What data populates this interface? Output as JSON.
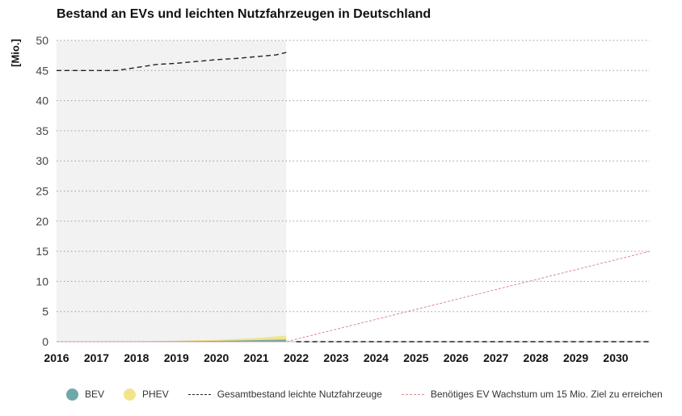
{
  "chart_data": {
    "type": "area",
    "title": "Bestand an EVs und leichten Nutzfahrzeugen in Deutschland",
    "ylabel": "[Mio.]",
    "xlabel": "",
    "ylim": [
      0,
      50
    ],
    "yticks": [
      0,
      5,
      10,
      15,
      20,
      25,
      30,
      35,
      40,
      45,
      50
    ],
    "xlim": [
      2016,
      2031
    ],
    "xticks": [
      "2016",
      "2017",
      "2018",
      "2019",
      "2020",
      "2021",
      "2022",
      "2023",
      "2024",
      "2025",
      "2026",
      "2027",
      "2028",
      "2029",
      "2030"
    ],
    "grid": "horizontal dotted",
    "shaded_region": {
      "from": 2016,
      "to": 2021.75,
      "color": "#f2f2f2"
    },
    "legend_position": "bottom",
    "series": [
      {
        "name": "BEV",
        "type": "area",
        "color": "#6fa8a8",
        "x": [
          2016,
          2017,
          2018,
          2019,
          2020,
          2021,
          2021.75
        ],
        "y": [
          0.01,
          0.03,
          0.05,
          0.08,
          0.13,
          0.25,
          0.35
        ]
      },
      {
        "name": "PHEV",
        "type": "area",
        "color": "#f2e48a",
        "x": [
          2016,
          2017,
          2018,
          2019,
          2020,
          2021,
          2021.75
        ],
        "y": [
          0.02,
          0.05,
          0.09,
          0.15,
          0.3,
          0.6,
          1.0
        ]
      },
      {
        "name": "Gesamtbestand leichte Nutzfahrzeuge",
        "type": "line",
        "style": "dashed",
        "color": "#222222",
        "x": [
          2016,
          2017,
          2017.5,
          2018,
          2018.5,
          2019,
          2019.5,
          2020,
          2020.5,
          2021,
          2021.5,
          2021.75,
          2022,
          2023,
          2024,
          2025,
          2026,
          2027,
          2028,
          2029,
          2030,
          2030.85
        ],
        "y": [
          45,
          45,
          45,
          45.5,
          46,
          46.2,
          46.5,
          46.8,
          47,
          47.3,
          47.6,
          48,
          0,
          0,
          0,
          0,
          0,
          0,
          0,
          0,
          0,
          0
        ],
        "note_segments": [
          [
            0,
            11
          ],
          [
            12,
            21
          ]
        ]
      },
      {
        "name": "Benötiges EV Wachstum um 15 Mio. Ziel zu erreichen",
        "type": "line",
        "style": "dotted",
        "color": "#d98a8a",
        "x": [
          2016,
          2021.75,
          2030.85
        ],
        "y": [
          0,
          0,
          15
        ]
      }
    ]
  }
}
